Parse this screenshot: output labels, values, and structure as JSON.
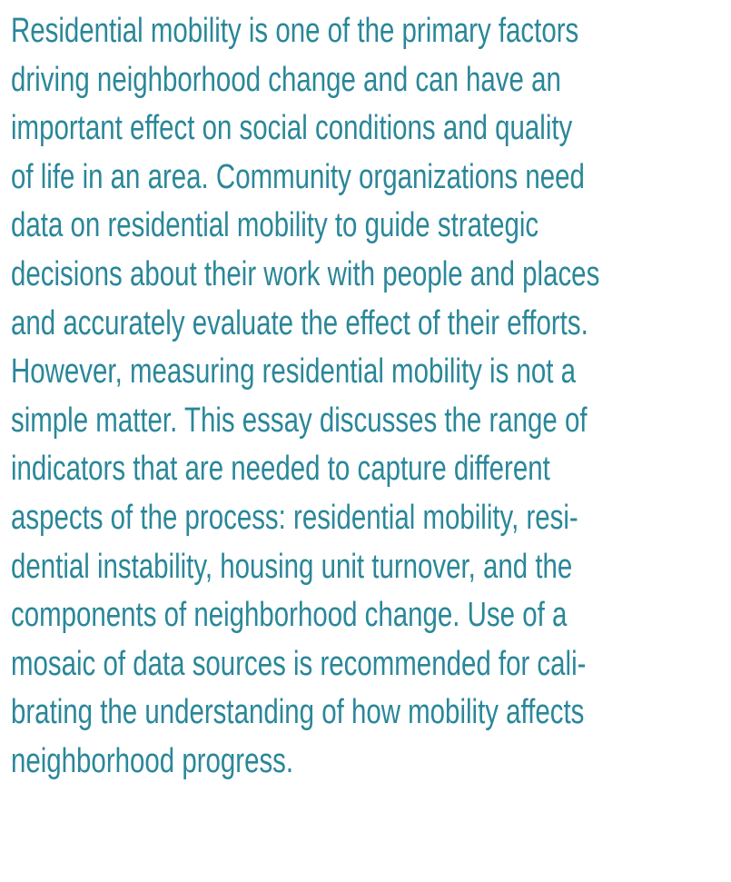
{
  "paragraph": {
    "lines": [
      "Residential mobility is one of the primary factors",
      "driving neighborhood change and can have an",
      "important effect on social conditions and quality",
      "of life in an area. Community organizations need",
      "data on residential mobility to guide strategic",
      "decisions about their work with people and places",
      "and accurately evaluate the effect of their efforts.",
      "However, measuring residential mobility is not a",
      "simple matter. This essay discusses the range of",
      "indicators that are needed to capture different",
      "aspects of the process: residential mobility, resi-",
      "dential instability, housing unit turnover, and the",
      "components of neighborhood change. Use of a",
      "mosaic of data sources is recommended for cali-",
      "brating the understanding of how mobility affects",
      "neighborhood progress."
    ]
  }
}
